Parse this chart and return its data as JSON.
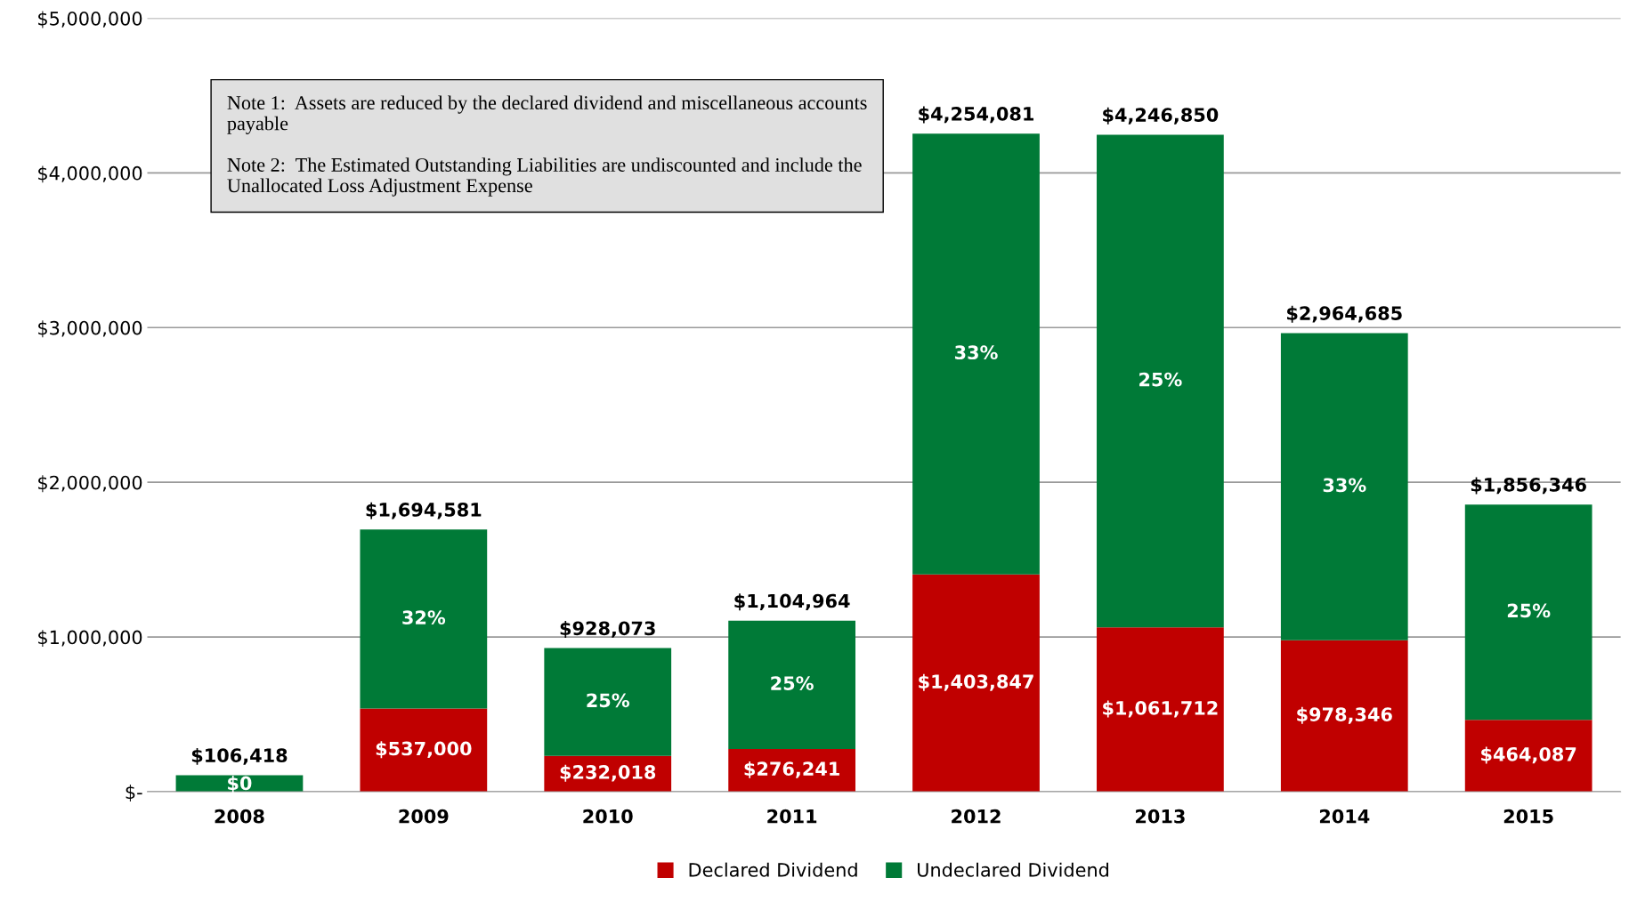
{
  "chart_data": {
    "type": "bar",
    "stacked": true,
    "categories": [
      "2008",
      "2009",
      "2010",
      "2011",
      "2012",
      "2013",
      "2014",
      "2015"
    ],
    "series": [
      {
        "name": "Declared Dividend",
        "color": "#c00000",
        "values": [
          0,
          537000,
          232018,
          276241,
          1403847,
          1061712,
          978346,
          464087
        ],
        "value_labels": [
          "$0",
          "$537,000",
          "$232,018",
          "$276,241",
          "$1,403,847",
          "$1,061,712",
          "$978,346",
          "$464,087"
        ]
      },
      {
        "name": "Undeclared Dividend",
        "color": "#007a37",
        "values": [
          106418,
          1157581,
          696055,
          828723,
          2850234,
          3185138,
          1986339,
          1392259
        ]
      }
    ],
    "totals": [
      "$106,418",
      "$1,694,581",
      "$928,073",
      "$1,104,964",
      "$4,254,081",
      "$4,246,850",
      "$2,964,685",
      "$1,856,346"
    ],
    "ylim": [
      0,
      5000000
    ],
    "yticks": [
      {
        "value": 0,
        "label": "$-"
      },
      {
        "value": 1000000,
        "label": "$1,000,000"
      },
      {
        "value": 2000000,
        "label": "$2,000,000"
      },
      {
        "value": 3000000,
        "label": "$3,000,000"
      },
      {
        "value": 4000000,
        "label": "$4,000,000"
      },
      {
        "value": 5000000,
        "label": "$5,000,000"
      }
    ],
    "grid": "y",
    "legend": "bottom",
    "annotations": [
      "32%",
      "25%",
      "25%",
      "33%",
      "25%",
      "33%",
      "25%",
      "Note 1:  Assets are reduced by the declared dividend and miscellaneous accounts payable",
      "Note 2:  The Estimated Outstanding Liabilities are undiscounted and include the Unallocated Loss Adjustment Expense"
    ]
  }
}
